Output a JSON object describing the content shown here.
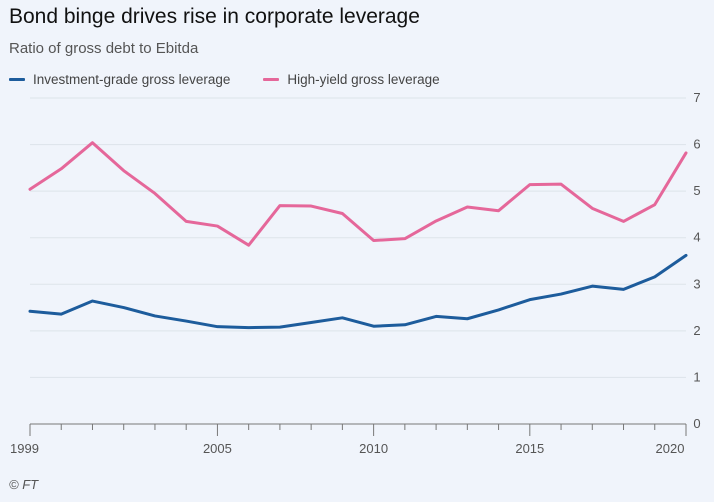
{
  "chart_data": {
    "type": "line",
    "title": "Bond binge drives rise in corporate leverage",
    "subtitle": "Ratio of gross debt to Ebitda",
    "source": "© FT",
    "x": [
      1999,
      2000,
      2001,
      2002,
      2003,
      2004,
      2005,
      2006,
      2007,
      2008,
      2009,
      2010,
      2011,
      2012,
      2013,
      2014,
      2015,
      2016,
      2017,
      2018,
      2019,
      2020
    ],
    "xlim": [
      1999,
      2020
    ],
    "x_ticks": [
      1999,
      2005,
      2010,
      2015,
      2020
    ],
    "ylim": [
      0,
      7
    ],
    "y_ticks": [
      0,
      1,
      2,
      3,
      4,
      5,
      6,
      7
    ],
    "grid": true,
    "legend_position": "top-left",
    "series": [
      {
        "name": "Investment-grade gross leverage",
        "color": "#1d5c9c",
        "values": [
          2.42,
          2.36,
          2.64,
          2.5,
          2.32,
          2.21,
          2.09,
          2.07,
          2.08,
          2.18,
          2.28,
          2.1,
          2.13,
          2.31,
          2.26,
          2.45,
          2.67,
          2.79,
          2.96,
          2.89,
          3.16,
          3.62
        ]
      },
      {
        "name": "High-yield gross leverage",
        "color": "#e5679a",
        "values": [
          5.04,
          5.48,
          6.04,
          5.44,
          4.95,
          4.35,
          4.25,
          3.84,
          4.69,
          4.68,
          4.52,
          3.94,
          3.98,
          4.36,
          4.66,
          4.58,
          5.14,
          5.15,
          4.63,
          4.35,
          4.71,
          5.82
        ]
      }
    ]
  }
}
